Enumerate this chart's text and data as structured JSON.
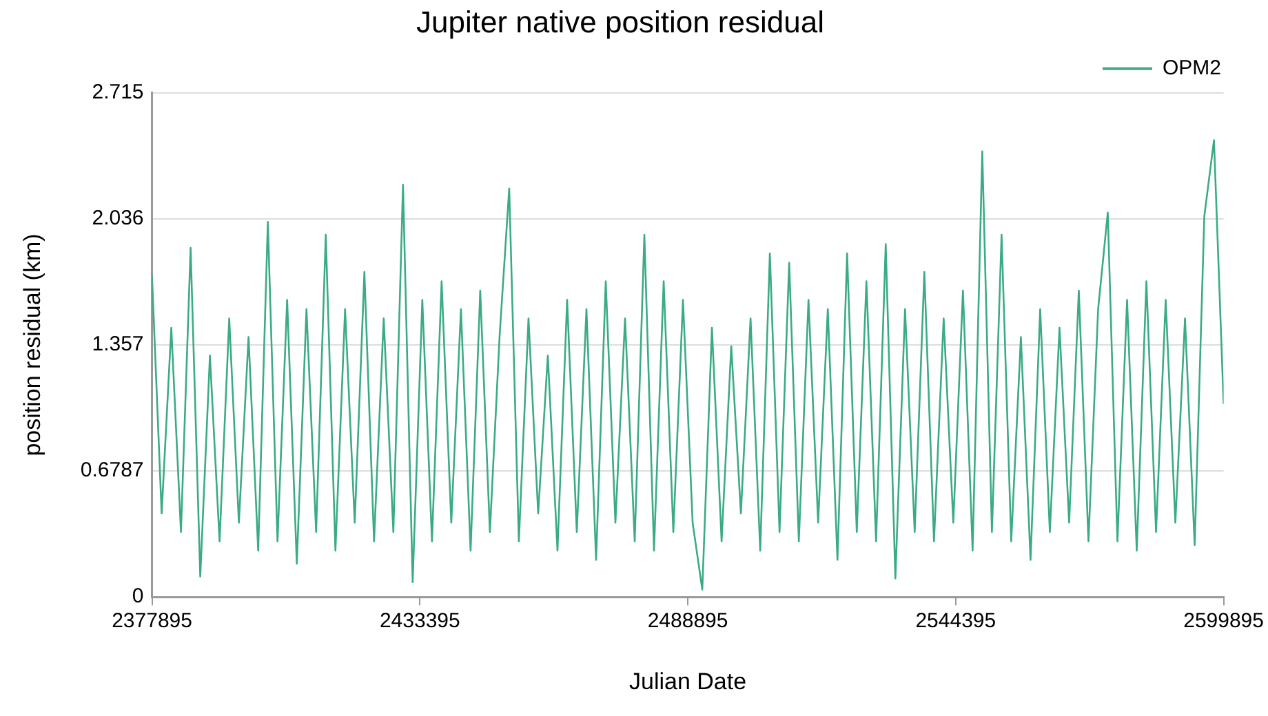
{
  "chart_data": {
    "type": "line",
    "title": "Jupiter native position residual",
    "xlabel": "Julian Date",
    "ylabel": "position residual (km)",
    "x": [
      2377895,
      2379895,
      2381895,
      2383895,
      2385895,
      2387895,
      2389895,
      2391895,
      2393895,
      2395895,
      2397895,
      2399895,
      2401895,
      2403895,
      2405895,
      2407895,
      2409895,
      2411895,
      2413895,
      2415895,
      2417895,
      2419895,
      2421895,
      2423895,
      2425895,
      2427895,
      2429895,
      2431895,
      2433895,
      2435895,
      2437895,
      2439895,
      2441895,
      2443895,
      2445895,
      2447895,
      2449895,
      2451895,
      2453895,
      2455895,
      2457895,
      2459895,
      2461895,
      2463895,
      2465895,
      2467895,
      2469895,
      2471895,
      2473895,
      2475895,
      2477895,
      2479895,
      2481895,
      2483895,
      2485895,
      2487895,
      2489895,
      2491895,
      2493895,
      2495895,
      2497895,
      2499895,
      2501895,
      2503895,
      2505895,
      2507895,
      2509895,
      2511895,
      2513895,
      2515895,
      2517895,
      2519895,
      2521895,
      2523895,
      2525895,
      2527895,
      2529895,
      2531895,
      2533895,
      2535895,
      2537895,
      2539895,
      2541895,
      2543895,
      2545895,
      2547895,
      2549895,
      2551895,
      2553895,
      2555895,
      2557895,
      2559895,
      2561895,
      2563895,
      2565895,
      2567895,
      2569895,
      2571895,
      2573895,
      2575895,
      2577895,
      2579895,
      2581895,
      2583895,
      2585895,
      2587895,
      2589895,
      2591895,
      2593895,
      2595895,
      2597895,
      2599895
    ],
    "series": [
      {
        "name": "OPM2",
        "color": "#3bab86",
        "values": [
          1.73,
          0.45,
          1.45,
          0.35,
          1.88,
          0.11,
          1.3,
          0.3,
          1.5,
          0.4,
          1.4,
          0.25,
          2.02,
          0.3,
          1.6,
          0.18,
          1.55,
          0.35,
          1.95,
          0.25,
          1.55,
          0.4,
          1.75,
          0.3,
          1.5,
          0.35,
          2.22,
          0.08,
          1.6,
          0.3,
          1.7,
          0.4,
          1.55,
          0.25,
          1.65,
          0.35,
          1.4,
          2.2,
          0.3,
          1.5,
          0.45,
          1.3,
          0.25,
          1.6,
          0.35,
          1.55,
          0.2,
          1.7,
          0.4,
          1.5,
          0.3,
          1.95,
          0.25,
          1.7,
          0.35,
          1.6,
          0.4,
          0.04,
          1.45,
          0.3,
          1.35,
          0.45,
          1.5,
          0.25,
          1.85,
          0.35,
          1.8,
          0.3,
          1.6,
          0.4,
          1.55,
          0.2,
          1.85,
          0.35,
          1.7,
          0.3,
          1.9,
          0.1,
          1.55,
          0.35,
          1.75,
          0.3,
          1.5,
          0.4,
          1.65,
          0.25,
          2.4,
          0.35,
          1.95,
          0.3,
          1.4,
          0.2,
          1.55,
          0.35,
          1.45,
          0.4,
          1.65,
          0.3,
          1.55,
          2.07,
          0.3,
          1.6,
          0.25,
          1.7,
          0.35,
          1.6,
          0.4,
          1.5,
          0.28,
          2.05,
          2.46,
          1.04
        ]
      }
    ],
    "xlim": [
      2377895,
      2599895
    ],
    "xticks": [
      2377895,
      2433395,
      2488895,
      2544395,
      2599895
    ],
    "ylim": [
      0,
      2.715
    ],
    "yticks": [
      0,
      0.6787,
      1.357,
      2.036,
      2.715
    ],
    "grid": "y",
    "legend": "top right",
    "marker": "none",
    "line_style": "solid"
  }
}
